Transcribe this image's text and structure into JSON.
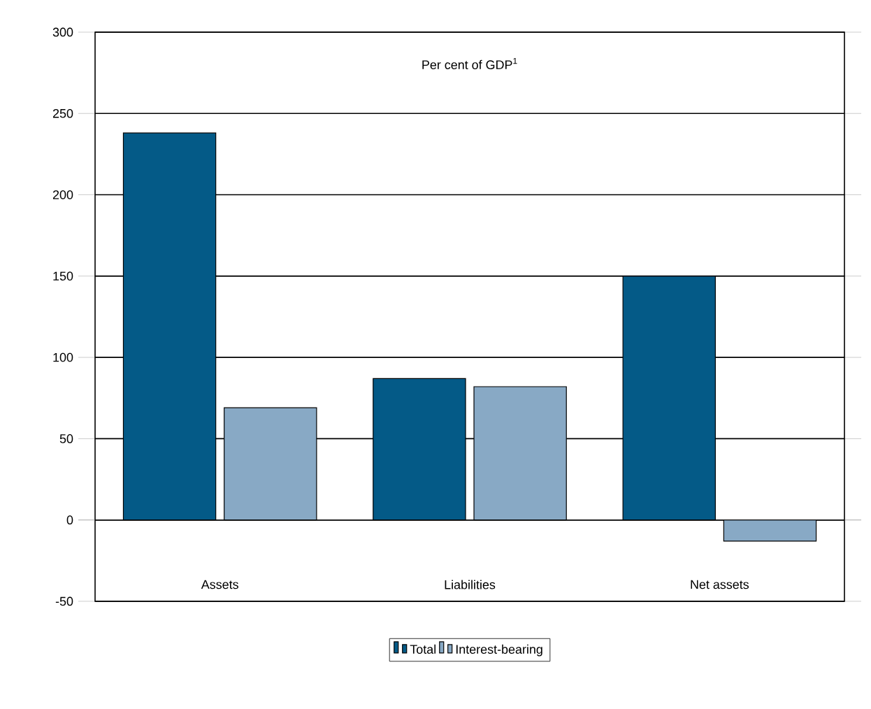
{
  "chart_data": {
    "type": "bar",
    "title": "Per cent of GDP$^{1}$",
    "categories": [
      "Assets",
      "Liabilities",
      "Net assets"
    ],
    "series": [
      {
        "name": "Total",
        "color": "#045a87",
        "values": [
          238,
          87,
          150
        ]
      },
      {
        "name": "Interest-bearing",
        "color": "#88a9c5",
        "values": [
          69,
          82,
          -13
        ]
      }
    ],
    "ylim": [
      -50,
      300
    ],
    "yticks": [
      -50,
      0,
      50,
      100,
      150,
      200,
      250,
      300
    ],
    "grid": "y",
    "legend": "bottom"
  }
}
